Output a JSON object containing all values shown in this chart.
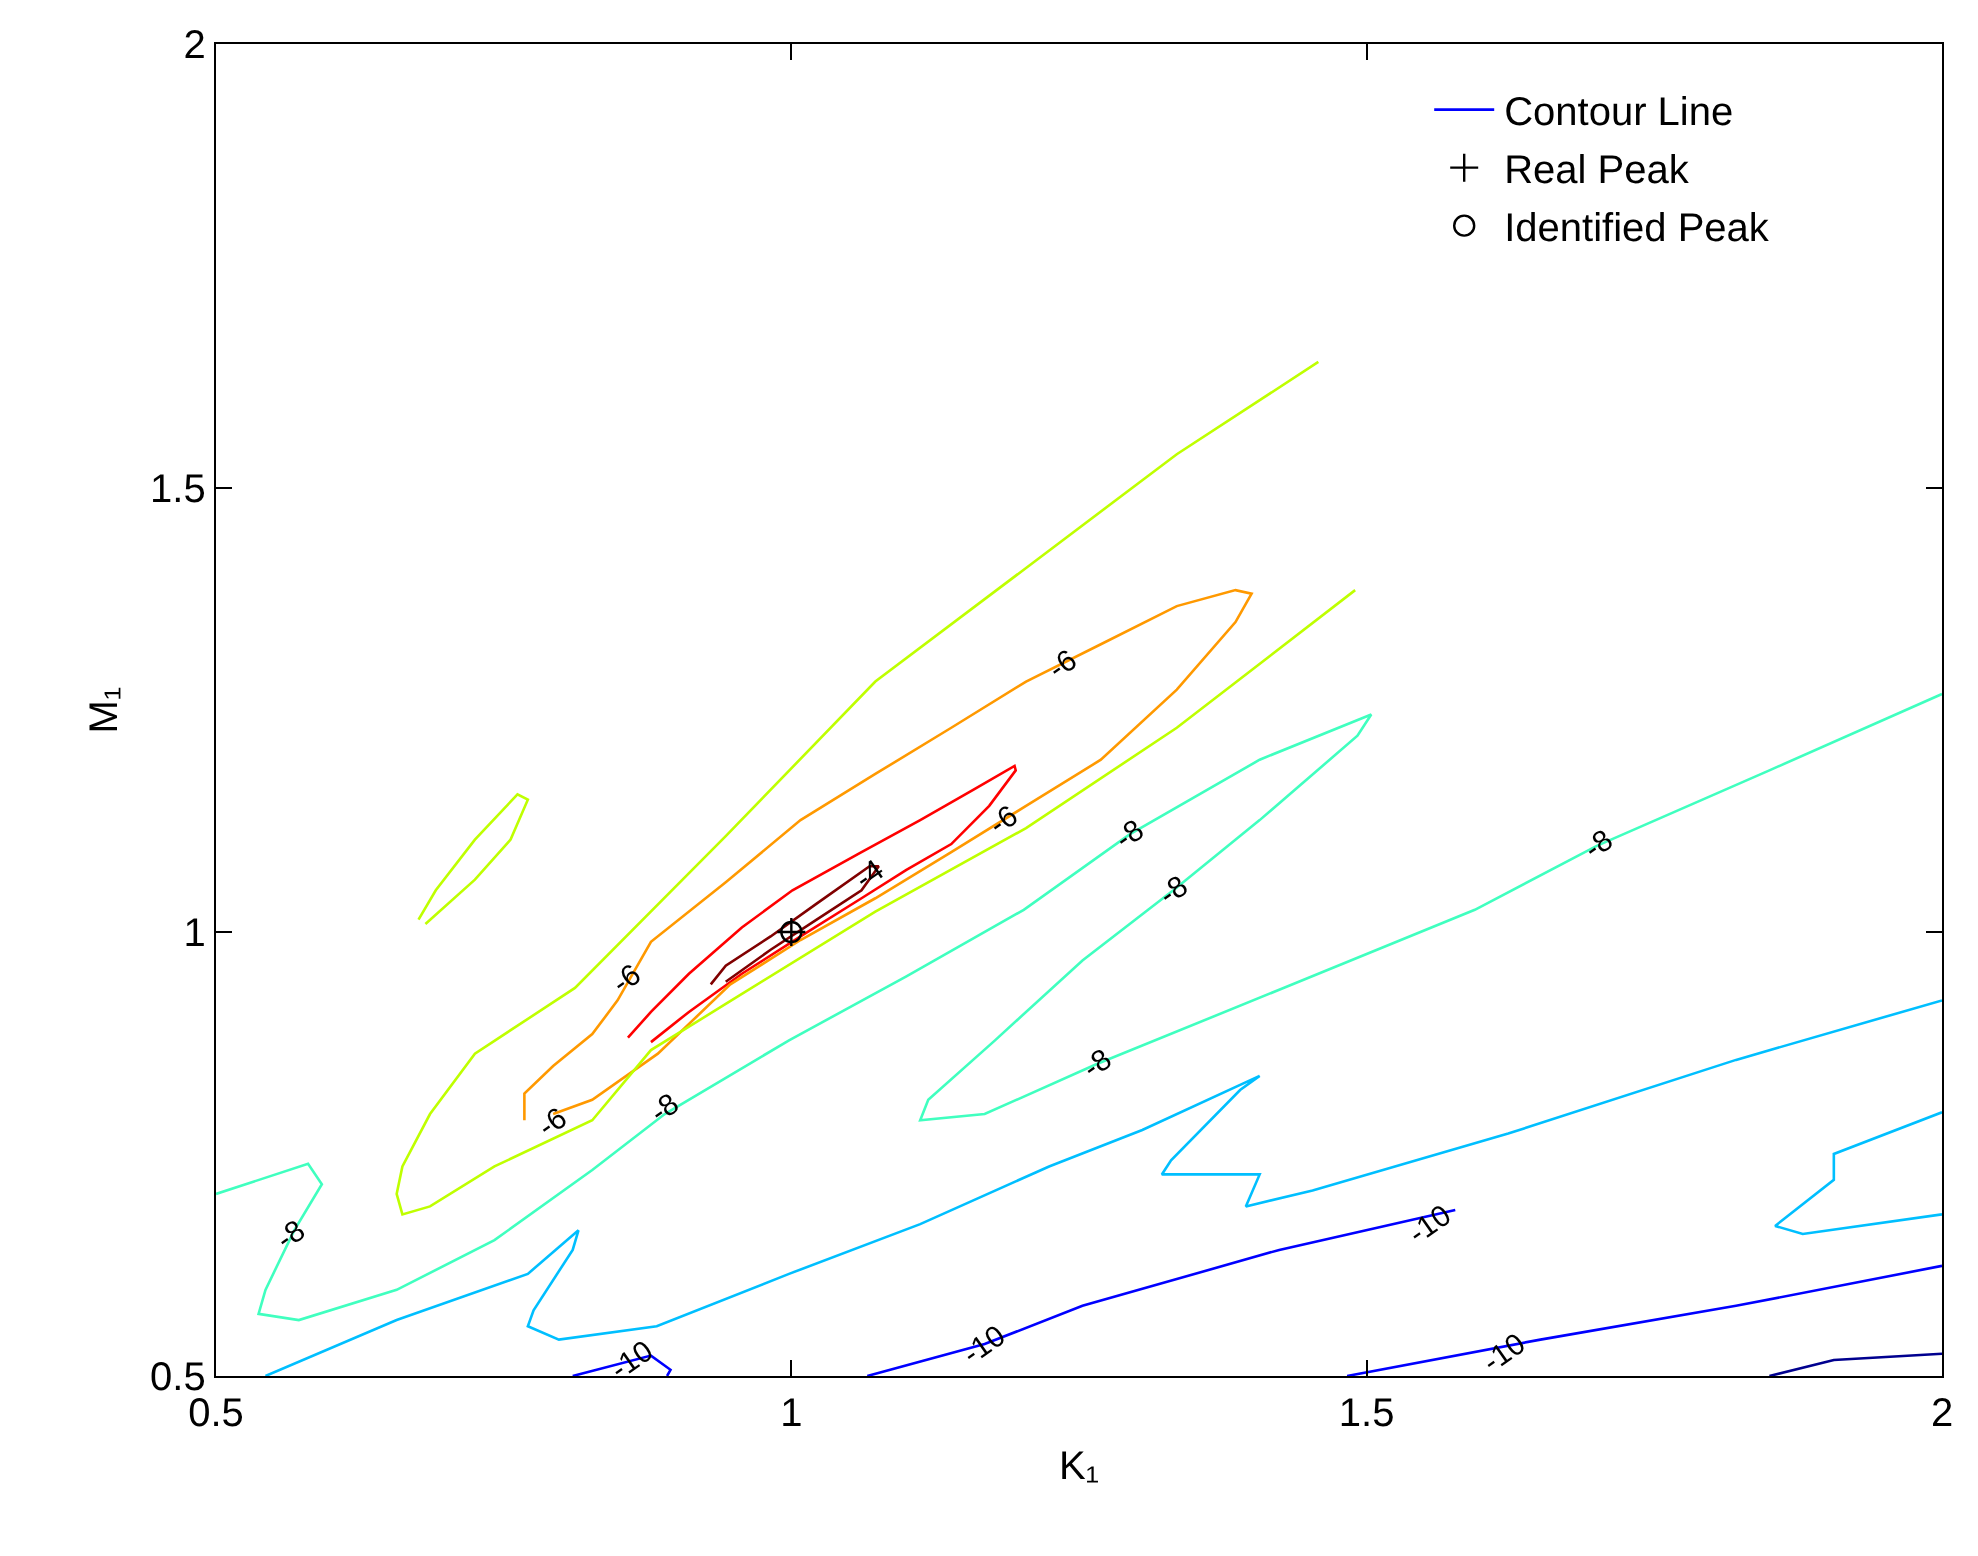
{
  "chart_data": {
    "type": "line",
    "xlabel": "K₁",
    "ylabel": "M₁",
    "xlim": [
      0.5,
      2
    ],
    "ylim": [
      0.5,
      2
    ],
    "xticks": [
      0.5,
      1,
      1.5,
      2
    ],
    "yticks": [
      0.5,
      1,
      1.5,
      2
    ],
    "legend": "top right",
    "series": [
      {
        "name": "Contour Line",
        "color": "#0000ff",
        "marker": "none",
        "x": [
          1.066,
          1.168,
          1.253,
          1.424,
          1.577
        ],
        "values": [
          0.5,
          0.536,
          0.579,
          0.642,
          0.687
        ]
      },
      {
        "color": "#800000",
        "marker": "none",
        "x": [
          0.93,
          0.943,
          0.982,
          1.022,
          1.068,
          1.076,
          1.061,
          1.022,
          0.982,
          0.943
        ],
        "values": [
          0.941,
          0.962,
          0.995,
          1.032,
          1.074,
          1.074,
          1.047,
          1.014,
          0.98,
          0.944
        ]
      },
      {
        "color": "#ff0000",
        "marker": "none",
        "x": [
          0.858,
          0.878,
          0.911,
          0.957,
          1.001,
          1.061,
          1.112,
          1.158,
          1.194,
          1.195,
          1.172,
          1.139,
          1.1,
          1.061,
          1.008,
          0.957,
          0.911,
          0.878
        ],
        "values": [
          0.881,
          0.91,
          0.953,
          1.005,
          1.047,
          1.09,
          1.126,
          1.16,
          1.187,
          1.182,
          1.142,
          1.099,
          1.07,
          1.038,
          0.995,
          0.953,
          0.91,
          0.876
        ]
      },
      {
        "color": "#ff9900",
        "marker": "none",
        "x": [
          0.768,
          0.768,
          0.793,
          0.827,
          0.849,
          0.878,
          0.943,
          1.008,
          1.073,
          1.139,
          1.204,
          1.269,
          1.335,
          1.386,
          1.4,
          1.386,
          1.335,
          1.269,
          1.204,
          1.139,
          1.073,
          1.008,
          0.947,
          0.884,
          0.827,
          0.793
        ],
        "values": [
          0.788,
          0.818,
          0.849,
          0.885,
          0.923,
          0.989,
          1.056,
          1.126,
          1.178,
          1.23,
          1.282,
          1.324,
          1.367,
          1.385,
          1.381,
          1.349,
          1.273,
          1.194,
          1.142,
          1.09,
          1.038,
          0.991,
          0.941,
          0.863,
          0.811,
          0.795
        ]
      },
      {
        "color": "#bfff00",
        "marker": "none",
        "x": [
          1.458,
          1.335,
          1.204,
          1.073,
          0.943,
          0.812,
          0.725,
          0.686,
          0.662,
          0.657,
          0.662,
          0.686,
          0.742,
          0.827,
          0.878,
          0.943,
          1.073,
          1.204,
          1.335,
          1.49
        ],
        "values": [
          1.642,
          1.538,
          1.41,
          1.282,
          1.108,
          0.937,
          0.863,
          0.795,
          0.736,
          0.705,
          0.682,
          0.691,
          0.736,
          0.788,
          0.867,
          0.919,
          1.023,
          1.117,
          1.23,
          1.385
        ]
      },
      {
        "color": "#bfff00",
        "marker": "none",
        "x": [
          0.676,
          0.691,
          0.725,
          0.762,
          0.771,
          0.756,
          0.725,
          0.682
        ],
        "values": [
          1.014,
          1.047,
          1.104,
          1.155,
          1.149,
          1.104,
          1.059,
          1.009
        ]
      },
      {
        "color": "#40ffbf",
        "marker": "none",
        "x": [
          0.5,
          0.58,
          0.592,
          0.568,
          0.543,
          0.537,
          0.572,
          0.657,
          0.742,
          0.827,
          0.89,
          0.998,
          1.1,
          1.202,
          1.294,
          1.407,
          1.504,
          1.492,
          1.407,
          1.332,
          1.253,
          1.177,
          1.119,
          1.112,
          1.168,
          1.265,
          1.424,
          1.594,
          1.7,
          1.85,
          2.0
        ],
        "values": [
          0.705,
          0.739,
          0.716,
          0.664,
          0.597,
          0.57,
          0.563,
          0.597,
          0.653,
          0.732,
          0.795,
          0.878,
          0.95,
          1.025,
          1.11,
          1.194,
          1.245,
          1.221,
          1.126,
          1.047,
          0.968,
          0.878,
          0.811,
          0.788,
          0.795,
          0.851,
          0.935,
          1.025,
          1.097,
          1.182,
          1.268
        ]
      },
      {
        "color": "#00bfff",
        "marker": "none",
        "x": [
          0.543,
          0.657,
          0.771,
          0.815,
          0.81,
          0.776,
          0.771,
          0.798,
          0.883,
          0.998,
          1.112,
          1.224,
          1.305,
          1.407,
          1.39,
          1.33,
          1.322,
          1.407,
          1.395,
          1.453,
          1.623,
          1.821,
          2.0
        ],
        "values": [
          0.5,
          0.563,
          0.615,
          0.664,
          0.642,
          0.574,
          0.556,
          0.541,
          0.556,
          0.615,
          0.671,
          0.736,
          0.777,
          0.838,
          0.822,
          0.743,
          0.727,
          0.727,
          0.691,
          0.709,
          0.773,
          0.856,
          0.923
        ]
      },
      {
        "color": "#00bfff",
        "marker": "none",
        "x": [
          2.0,
          1.906,
          1.906,
          1.855,
          1.879,
          2.0
        ],
        "values": [
          0.797,
          0.75,
          0.721,
          0.669,
          0.66,
          0.682
        ]
      },
      {
        "color": "#0000ff",
        "marker": "none",
        "x": [
          1.483,
          1.651,
          1.821,
          2.0
        ],
        "values": [
          0.5,
          0.541,
          0.579,
          0.624
        ]
      },
      {
        "color": "#0000ff",
        "marker": "none",
        "x": [
          0.81,
          0.878,
          0.895,
          0.892
        ],
        "values": [
          0.5,
          0.523,
          0.507,
          0.5
        ]
      },
      {
        "color": "#00008f",
        "marker": "none",
        "x": [
          1.85,
          1.906,
          2.0
        ],
        "values": [
          0.5,
          0.518,
          0.525
        ]
      },
      {
        "name": "Real Peak",
        "type": "scatter",
        "color": "#000000",
        "marker": "cross",
        "x": [
          1
        ],
        "values": [
          1
        ]
      },
      {
        "name": "Identified Peak",
        "type": "scatter",
        "color": "#000000",
        "marker": "circle",
        "x": [
          1
        ],
        "values": [
          1
        ]
      }
    ],
    "annotations": [
      {
        "text": "-4",
        "x": 1.068,
        "y": 1.065
      },
      {
        "text": "-6",
        "x": 1.236,
        "y": 1.3
      },
      {
        "text": "-6",
        "x": 1.184,
        "y": 1.126
      },
      {
        "text": "-6",
        "x": 0.858,
        "y": 0.946
      },
      {
        "text": "-6",
        "x": 0.793,
        "y": 0.784
      },
      {
        "text": "-8",
        "x": 1.294,
        "y": 1.11
      },
      {
        "text": "-8",
        "x": 1.332,
        "y": 1.047
      },
      {
        "text": "-8",
        "x": 1.702,
        "y": 1.097
      },
      {
        "text": "-8",
        "x": 1.265,
        "y": 0.851
      },
      {
        "text": "-8",
        "x": 0.89,
        "y": 0.8
      },
      {
        "text": "-8",
        "x": 0.566,
        "y": 0.658
      },
      {
        "text": "-10",
        "x": 0.861,
        "y": 0.518
      },
      {
        "text": "-10",
        "x": 1.168,
        "y": 0.536
      },
      {
        "text": "-10",
        "x": 1.555,
        "y": 0.671
      },
      {
        "text": "-10",
        "x": 1.62,
        "y": 0.527
      }
    ]
  }
}
